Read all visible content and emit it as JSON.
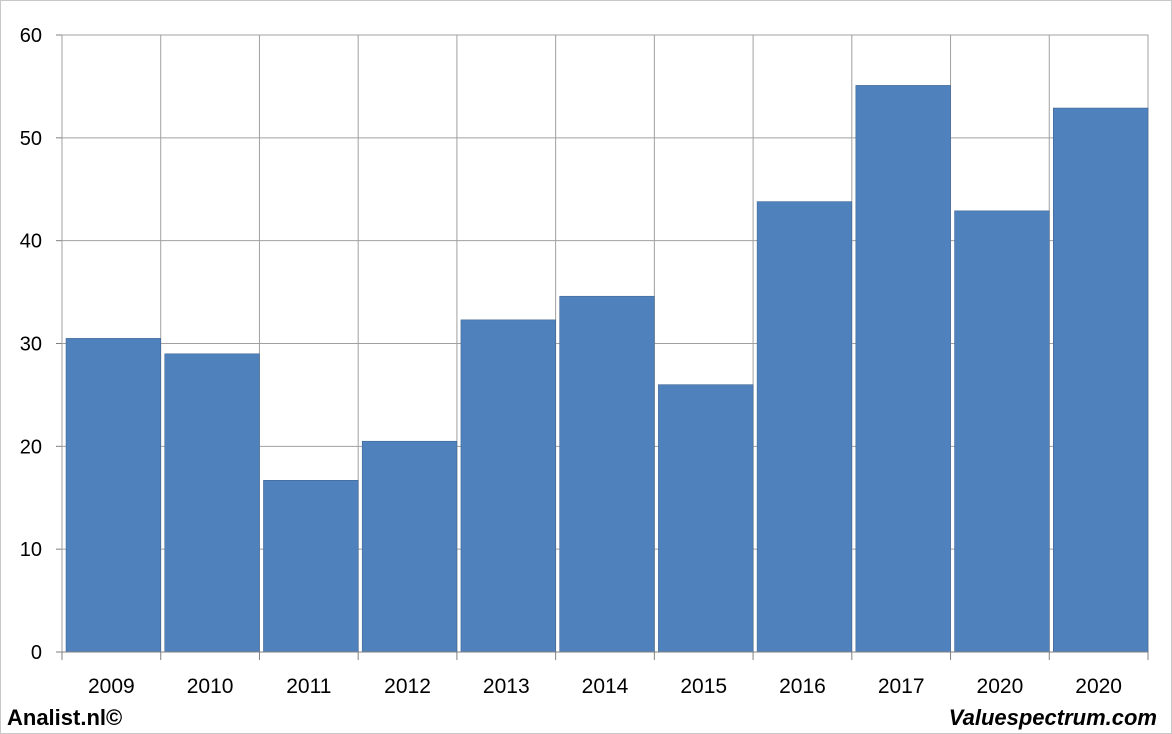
{
  "chart_data": {
    "type": "bar",
    "title": "",
    "xlabel": "",
    "ylabel": "",
    "categories": [
      "2009",
      "2010",
      "2011",
      "2012",
      "2013",
      "2014",
      "2015",
      "2016",
      "2017",
      "2020",
      "2020"
    ],
    "series": [
      {
        "values": [
          30.5,
          29.0,
          16.7,
          20.5,
          32.3,
          34.6,
          26.0,
          43.8,
          55.1,
          42.9,
          52.9
        ]
      }
    ],
    "ylim": [
      0,
      60
    ],
    "yticks": [
      "0",
      "10",
      "20",
      "30",
      "40",
      "50",
      "60"
    ],
    "grid": true,
    "legend": "none",
    "bar_color": "#4f81bd",
    "grid_color": "#a0a0a0"
  },
  "footer": {
    "left_text": "Analist.nl©",
    "right_text": "Valuespectrum.com"
  }
}
